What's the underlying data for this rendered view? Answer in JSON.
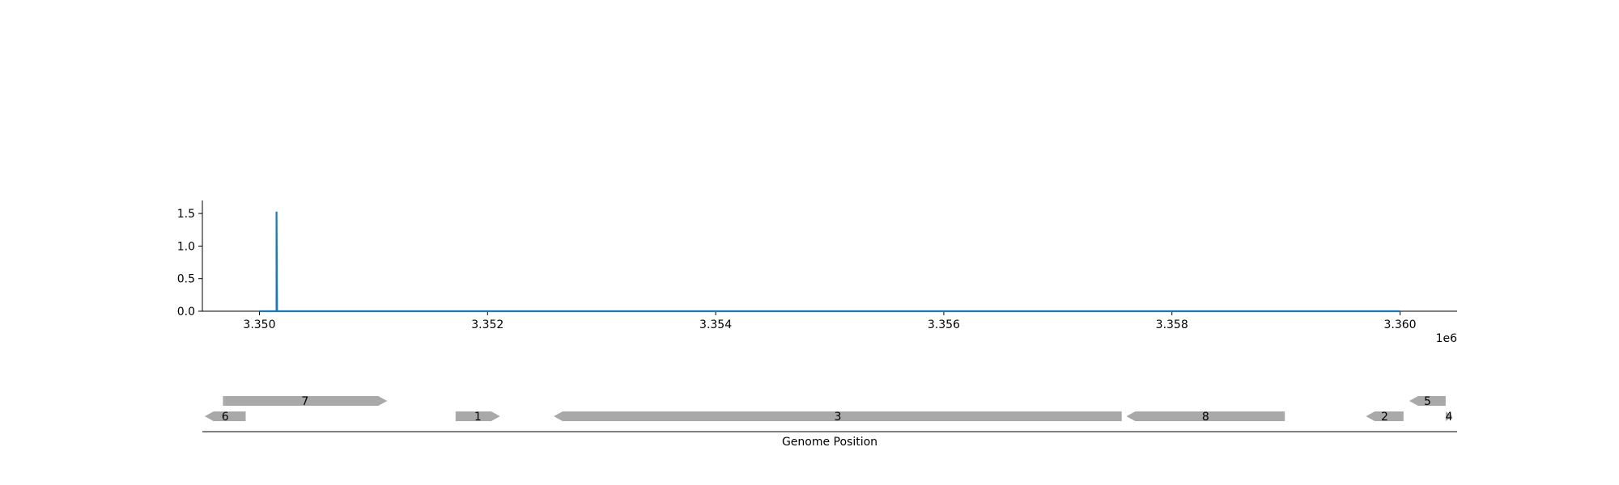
{
  "chart_data": [
    {
      "type": "line",
      "xlim": [
        3349500,
        3360500
      ],
      "ylim": [
        0,
        1.7
      ],
      "x_offset_label": "1e6",
      "x_ticks": [
        {
          "value": 3350000,
          "label": "3.350"
        },
        {
          "value": 3352000,
          "label": "3.352"
        },
        {
          "value": 3354000,
          "label": "3.354"
        },
        {
          "value": 3356000,
          "label": "3.356"
        },
        {
          "value": 3358000,
          "label": "3.358"
        },
        {
          "value": 3360000,
          "label": "3.360"
        }
      ],
      "y_ticks": [
        {
          "value": 0.0,
          "label": "0.0"
        },
        {
          "value": 0.5,
          "label": "0.5"
        },
        {
          "value": 1.0,
          "label": "1.0"
        },
        {
          "value": 1.5,
          "label": "1.5"
        }
      ],
      "grid": false,
      "series": [
        {
          "color": "#1f77b4",
          "x": [
            3350000,
            3350150,
            3350150,
            3350150,
            3350155,
            3360000
          ],
          "y": [
            0,
            0,
            1.53,
            1.53,
            0,
            0
          ]
        }
      ]
    },
    {
      "type": "gene_track",
      "xlim": [
        3349500,
        3360500
      ],
      "xlabel": "Genome Position",
      "fill_color": "#a9a9a9",
      "genes": [
        {
          "label": "7",
          "start": 3349680,
          "end": 3351120,
          "strand": "+",
          "row": 1
        },
        {
          "label": "6",
          "start": 3349520,
          "end": 3349880,
          "strand": "-",
          "row": 0
        },
        {
          "label": "1",
          "start": 3351720,
          "end": 3352110,
          "strand": "+",
          "row": 0
        },
        {
          "label": "3",
          "start": 3352580,
          "end": 3357560,
          "strand": "-",
          "row": 0
        },
        {
          "label": "8",
          "start": 3357600,
          "end": 3358990,
          "strand": "-",
          "row": 0
        },
        {
          "label": "2",
          "start": 3359700,
          "end": 3360030,
          "strand": "-",
          "row": 0
        },
        {
          "label": "5",
          "start": 3360080,
          "end": 3360400,
          "strand": "-",
          "row": 1
        },
        {
          "label": "4",
          "start": 3360400,
          "end": 3360460,
          "strand": "+",
          "row": 0
        }
      ]
    }
  ]
}
